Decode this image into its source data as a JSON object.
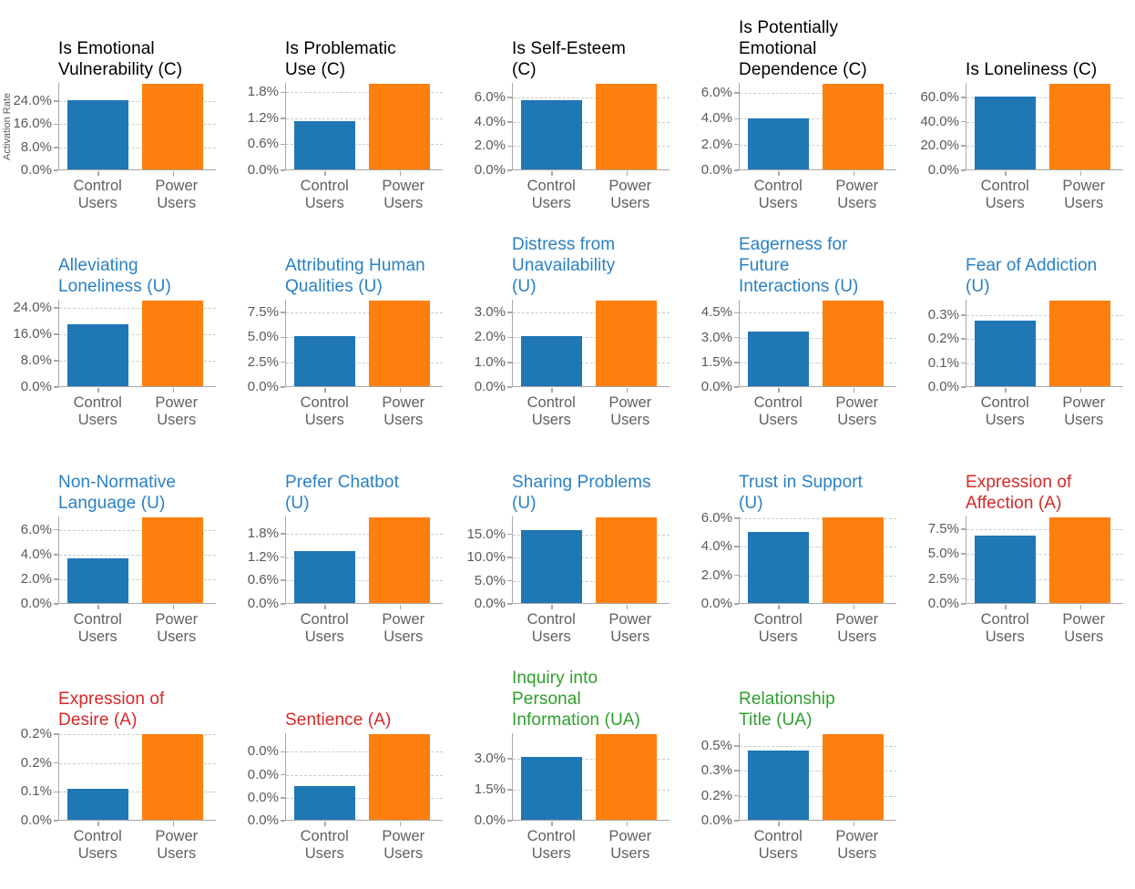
{
  "axis_label": "Activation Rate",
  "colors": {
    "control_bar": "#1f77b4",
    "power_bar": "#ff7f0e",
    "title_construct": "#000000",
    "title_utterance": "#2980c4",
    "title_affection": "#d62728",
    "title_user_affection": "#2ca02c",
    "tick_text": "#595959",
    "axis_line": "#a8a8a8",
    "gridline": "#c9c9c9"
  },
  "chart_data": {
    "type": "bar",
    "categories": [
      "Control Users",
      "Power Users"
    ],
    "category_lines": [
      [
        "Control",
        "Users"
      ],
      [
        "Power",
        "Users"
      ]
    ],
    "series_names": [
      "Control Users",
      "Power Users"
    ],
    "ylabel": "Activation Rate",
    "grid": "dashed horizontal",
    "legend": "none",
    "charts": [
      {
        "title_lines": [
          "Is Emotional",
          "Vulnerability (C)"
        ],
        "group": "C",
        "yticks": [
          {
            "label": "24.0%",
            "value": 24
          },
          {
            "label": "16.0%",
            "value": 16
          },
          {
            "label": "8.0%",
            "value": 8
          },
          {
            "label": "0.0%",
            "value": 0
          }
        ],
        "ymax": 30.4,
        "values": {
          "control": 24.0,
          "power": 29.8
        }
      },
      {
        "title_lines": [
          "Is Problematic",
          "Use (C)"
        ],
        "group": "C",
        "yticks": [
          {
            "label": "1.8%",
            "value": 1.8
          },
          {
            "label": "1.2%",
            "value": 1.2
          },
          {
            "label": "0.6%",
            "value": 0.6
          },
          {
            "label": "0.0%",
            "value": 0
          }
        ],
        "ymax": 2.02,
        "values": {
          "control": 1.12,
          "power": 1.98
        }
      },
      {
        "title_lines": [
          "Is Self-Esteem",
          "(C)"
        ],
        "group": "C",
        "yticks": [
          {
            "label": "6.0%",
            "value": 6
          },
          {
            "label": "4.0%",
            "value": 4
          },
          {
            "label": "2.0%",
            "value": 2
          },
          {
            "label": "0.0%",
            "value": 0
          }
        ],
        "ymax": 7.22,
        "values": {
          "control": 5.75,
          "power": 7.1
        }
      },
      {
        "title_lines": [
          "Is Potentially",
          "Emotional",
          "Dependence (C)"
        ],
        "group": "C",
        "yticks": [
          {
            "label": "6.0%",
            "value": 6
          },
          {
            "label": "4.0%",
            "value": 4
          },
          {
            "label": "2.0%",
            "value": 2
          },
          {
            "label": "0.0%",
            "value": 0
          }
        ],
        "ymax": 6.78,
        "values": {
          "control": 3.95,
          "power": 6.65
        }
      },
      {
        "title_lines": [
          "Is Loneliness (C)"
        ],
        "group": "C",
        "yticks": [
          {
            "label": "60.0%",
            "value": 60
          },
          {
            "label": "40.0%",
            "value": 40
          },
          {
            "label": "20.0%",
            "value": 20
          },
          {
            "label": "0.0%",
            "value": 0
          }
        ],
        "ymax": 71.8,
        "values": {
          "control": 59.5,
          "power": 70.5
        }
      },
      {
        "title_lines": [
          "Alleviating",
          "Loneliness (U)"
        ],
        "group": "U",
        "yticks": [
          {
            "label": "24.0%",
            "value": 24
          },
          {
            "label": "16.0%",
            "value": 16
          },
          {
            "label": "8.0%",
            "value": 8
          },
          {
            "label": "0.0%",
            "value": 0
          }
        ],
        "ymax": 26.5,
        "values": {
          "control": 18.9,
          "power": 26.0
        }
      },
      {
        "title_lines": [
          "Attributing Human",
          "Qualities (U)"
        ],
        "group": "U",
        "yticks": [
          {
            "label": "7.5%",
            "value": 7.5
          },
          {
            "label": "5.0%",
            "value": 5
          },
          {
            "label": "2.5%",
            "value": 2.5
          },
          {
            "label": "0.0%",
            "value": 0
          }
        ],
        "ymax": 8.78,
        "values": {
          "control": 5.05,
          "power": 8.6
        }
      },
      {
        "title_lines": [
          "Distress from",
          "Unavailability",
          "(U)"
        ],
        "group": "U",
        "yticks": [
          {
            "label": "3.0%",
            "value": 3
          },
          {
            "label": "2.0%",
            "value": 2
          },
          {
            "label": "1.0%",
            "value": 1
          },
          {
            "label": "0.0%",
            "value": 0
          }
        ],
        "ymax": 3.52,
        "values": {
          "control": 2.0,
          "power": 3.45
        }
      },
      {
        "title_lines": [
          "Eagerness for",
          "Future",
          "Interactions (U)"
        ],
        "group": "U",
        "yticks": [
          {
            "label": "4.5%",
            "value": 4.5
          },
          {
            "label": "3.0%",
            "value": 3
          },
          {
            "label": "1.5%",
            "value": 1.5
          },
          {
            "label": "0.0%",
            "value": 0
          }
        ],
        "ymax": 5.3,
        "values": {
          "control": 3.3,
          "power": 5.2
        }
      },
      {
        "title_lines": [
          "Fear of Addiction",
          "(U)"
        ],
        "group": "U",
        "yticks": [
          {
            "label": "0.3%",
            "value": 0.3
          },
          {
            "label": "0.2%",
            "value": 0.2
          },
          {
            "label": "0.1%",
            "value": 0.1
          },
          {
            "label": "0.0%",
            "value": 0
          }
        ],
        "ymax": 0.364,
        "values": {
          "control": 0.272,
          "power": 0.357
        }
      },
      {
        "title_lines": [
          "Non-Normative",
          "Language (U)"
        ],
        "group": "U",
        "yticks": [
          {
            "label": "6.0%",
            "value": 6
          },
          {
            "label": "4.0%",
            "value": 4
          },
          {
            "label": "2.0%",
            "value": 2
          },
          {
            "label": "0.0%",
            "value": 0
          }
        ],
        "ymax": 7.08,
        "values": {
          "control": 3.6,
          "power": 6.95
        }
      },
      {
        "title_lines": [
          "Prefer Chatbot",
          "(U)"
        ],
        "group": "U",
        "yticks": [
          {
            "label": "1.8%",
            "value": 1.8
          },
          {
            "label": "1.2%",
            "value": 1.2
          },
          {
            "label": "0.6%",
            "value": 0.6
          },
          {
            "label": "0.0%",
            "value": 0
          }
        ],
        "ymax": 2.24,
        "values": {
          "control": 1.34,
          "power": 2.2
        }
      },
      {
        "title_lines": [
          "Sharing Problems",
          "(U)"
        ],
        "group": "U",
        "yticks": [
          {
            "label": "15.0%",
            "value": 15
          },
          {
            "label": "10.0%",
            "value": 10
          },
          {
            "label": "5.0%",
            "value": 5
          },
          {
            "label": "0.0%",
            "value": 0
          }
        ],
        "ymax": 18.85,
        "values": {
          "control": 15.7,
          "power": 18.5
        }
      },
      {
        "title_lines": [
          "Trust in Support",
          "(U)"
        ],
        "group": "U",
        "yticks": [
          {
            "label": "6.0%",
            "value": 6
          },
          {
            "label": "4.0%",
            "value": 4
          },
          {
            "label": "2.0%",
            "value": 2
          },
          {
            "label": "0.0%",
            "value": 0
          }
        ],
        "ymax": 6.12,
        "values": {
          "control": 5.0,
          "power": 6.0
        }
      },
      {
        "title_lines": [
          "Expression of",
          "Affection (A)"
        ],
        "group": "A",
        "yticks": [
          {
            "label": "7.5%",
            "value": 7.5
          },
          {
            "label": "5.0%",
            "value": 5
          },
          {
            "label": "2.5%",
            "value": 2.5
          },
          {
            "label": "0.0%",
            "value": 0
          }
        ],
        "ymax": 8.76,
        "values": {
          "control": 6.75,
          "power": 8.6
        }
      },
      {
        "title_lines": [
          "Expression of",
          "Desire (A)"
        ],
        "group": "A",
        "yticks": [
          {
            "label": "0.2%",
            "value": 0.24
          },
          {
            "label": "0.2%",
            "value": 0.16
          },
          {
            "label": "0.1%",
            "value": 0.08
          },
          {
            "label": "0.0%",
            "value": 0
          }
        ],
        "ymax": 0.2425,
        "values": {
          "control": 0.087,
          "power": 0.238
        }
      },
      {
        "title_lines": [
          "Sentience (A)"
        ],
        "group": "A",
        "yticks": [
          {
            "label": "0.0%",
            "value": 0.045
          },
          {
            "label": "0.0%",
            "value": 0.03
          },
          {
            "label": "0.0%",
            "value": 0.015
          },
          {
            "label": "0.0%",
            "value": 0
          }
        ],
        "ymax": 0.0571,
        "values": {
          "control": 0.022,
          "power": 0.056
        }
      },
      {
        "title_lines": [
          "Inquiry into",
          "Personal",
          "Information (UA)"
        ],
        "group": "UA",
        "yticks": [
          {
            "label": "3.0%",
            "value": 3
          },
          {
            "label": "1.5%",
            "value": 1.5
          },
          {
            "label": "0.0%",
            "value": 0
          }
        ],
        "ymax": 4.23,
        "values": {
          "control": 3.02,
          "power": 4.15
        }
      },
      {
        "title_lines": [
          "Relationship",
          "Title (UA)"
        ],
        "group": "UA",
        "yticks": [
          {
            "label": "0.5%",
            "value": 0.48
          },
          {
            "label": "0.3%",
            "value": 0.32
          },
          {
            "label": "0.2%",
            "value": 0.16
          },
          {
            "label": "0.0%",
            "value": 0
          }
        ],
        "ymax": 0.561,
        "values": {
          "control": 0.445,
          "power": 0.55
        }
      }
    ]
  }
}
